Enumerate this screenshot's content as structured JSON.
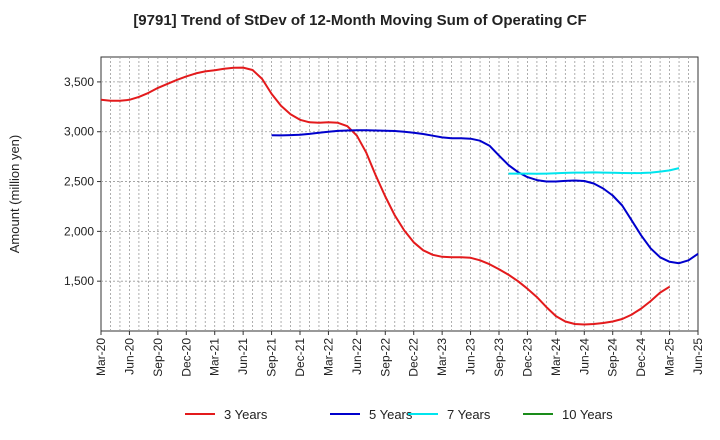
{
  "chart_data": {
    "type": "line",
    "title": "[9791]  Trend of StDev of 12-Month Moving Sum of Operating CF",
    "xlabel": "",
    "ylabel": "Amount (million yen)",
    "ylim": [
      1000,
      3750
    ],
    "yticks": [
      1500,
      2000,
      2500,
      3000,
      3500
    ],
    "ytick_labels": [
      "1,500",
      "2,000",
      "2,500",
      "3,000",
      "3,500"
    ],
    "xtick_labels": [
      "Mar-20",
      "Jun-20",
      "Sep-20",
      "Dec-20",
      "Mar-21",
      "Jun-21",
      "Sep-21",
      "Dec-21",
      "Mar-22",
      "Jun-22",
      "Sep-22",
      "Dec-22",
      "Mar-23",
      "Jun-23",
      "Sep-23",
      "Dec-23",
      "Mar-24",
      "Jun-24",
      "Sep-24",
      "Dec-24",
      "Mar-25",
      "Jun-25"
    ],
    "grid": true,
    "legend_position": "bottom",
    "series": [
      {
        "name": "3 Years",
        "color": "#e31a1c",
        "start_index": 0,
        "values": [
          3320,
          3310,
          3310,
          3320,
          3350,
          3390,
          3440,
          3480,
          3520,
          3555,
          3585,
          3605,
          3618,
          3632,
          3642,
          3644,
          3620,
          3530,
          3380,
          3260,
          3175,
          3120,
          3095,
          3090,
          3095,
          3090,
          3055,
          2960,
          2790,
          2560,
          2350,
          2160,
          2010,
          1890,
          1810,
          1765,
          1745,
          1740,
          1740,
          1735,
          1710,
          1670,
          1620,
          1565,
          1500,
          1425,
          1340,
          1240,
          1150,
          1095,
          1070,
          1065,
          1070,
          1080,
          1095,
          1120,
          1165,
          1225,
          1300,
          1385,
          1445
        ]
      },
      {
        "name": "5 Years",
        "color": "#0000cc",
        "start_index": 18,
        "values": [
          2965,
          2963,
          2966,
          2970,
          2978,
          2990,
          3000,
          3008,
          3012,
          3015,
          3015,
          3012,
          3010,
          3007,
          3000,
          2990,
          2977,
          2960,
          2943,
          2935,
          2935,
          2930,
          2910,
          2860,
          2760,
          2665,
          2595,
          2545,
          2515,
          2500,
          2500,
          2506,
          2510,
          2505,
          2480,
          2430,
          2360,
          2260,
          2110,
          1960,
          1830,
          1740,
          1695,
          1680,
          1710,
          1775
        ]
      },
      {
        "name": "7 Years",
        "color": "#00e5ee",
        "start_index": 43,
        "values": [
          2580,
          2580,
          2580,
          2578,
          2580,
          2583,
          2587,
          2590,
          2590,
          2592,
          2590,
          2588,
          2586,
          2585,
          2586,
          2590,
          2600,
          2612,
          2635
        ]
      },
      {
        "name": "10 Years",
        "color": "#1a8c1a",
        "start_index": 0,
        "values": []
      }
    ]
  }
}
